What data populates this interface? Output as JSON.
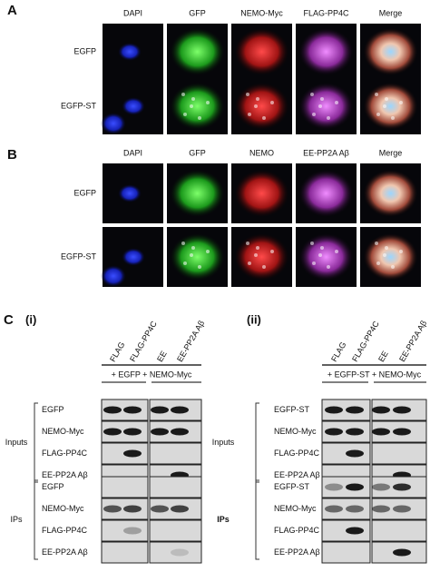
{
  "panels": [
    {
      "label": "A",
      "columns": [
        "DAPI",
        "GFP",
        "NEMO-Myc",
        "FLAG-PP4C",
        "Merge"
      ],
      "rows": [
        "EGFP",
        "EGFP-ST"
      ]
    },
    {
      "label": "B",
      "columns": [
        "DAPI",
        "GFP",
        "NEMO",
        "EE-PP2A Aβ",
        "Merge"
      ],
      "rows": [
        "EGFP",
        "EGFP-ST"
      ]
    }
  ],
  "panel_c": {
    "label": "C",
    "subpanels": [
      {
        "label": "(i)",
        "lanes": [
          "FLAG",
          "FLAG-PP4C",
          "EE",
          "EE-PP2A Aβ"
        ],
        "treatment": "+ EGFP + NEMO-Myc",
        "inputs": {
          "label": "Inputs",
          "blots": [
            "EGFP",
            "NEMO-Myc",
            "FLAG-PP4C",
            "EE-PP2A Aβ"
          ]
        },
        "ips": {
          "label": "IPs",
          "blots": [
            "EGFP",
            "NEMO-Myc",
            "FLAG-PP4C",
            "EE-PP2A Aβ"
          ]
        }
      },
      {
        "label": "(ii)",
        "lanes": [
          "FLAG",
          "FLAG-PP4C",
          "EE",
          "EE-PP2A Aβ"
        ],
        "treatment": "+ EGFP-ST + NEMO-Myc",
        "inputs": {
          "label": "Inputs",
          "blots": [
            "EGFP-ST",
            "NEMO-Myc",
            "FLAG-PP4C",
            "EE-PP2A Aβ"
          ]
        },
        "ips": {
          "label": "IPs",
          "blots": [
            "EGFP-ST",
            "NEMO-Myc",
            "FLAG-PP4C",
            "EE-PP2A Aβ"
          ]
        }
      }
    ]
  }
}
